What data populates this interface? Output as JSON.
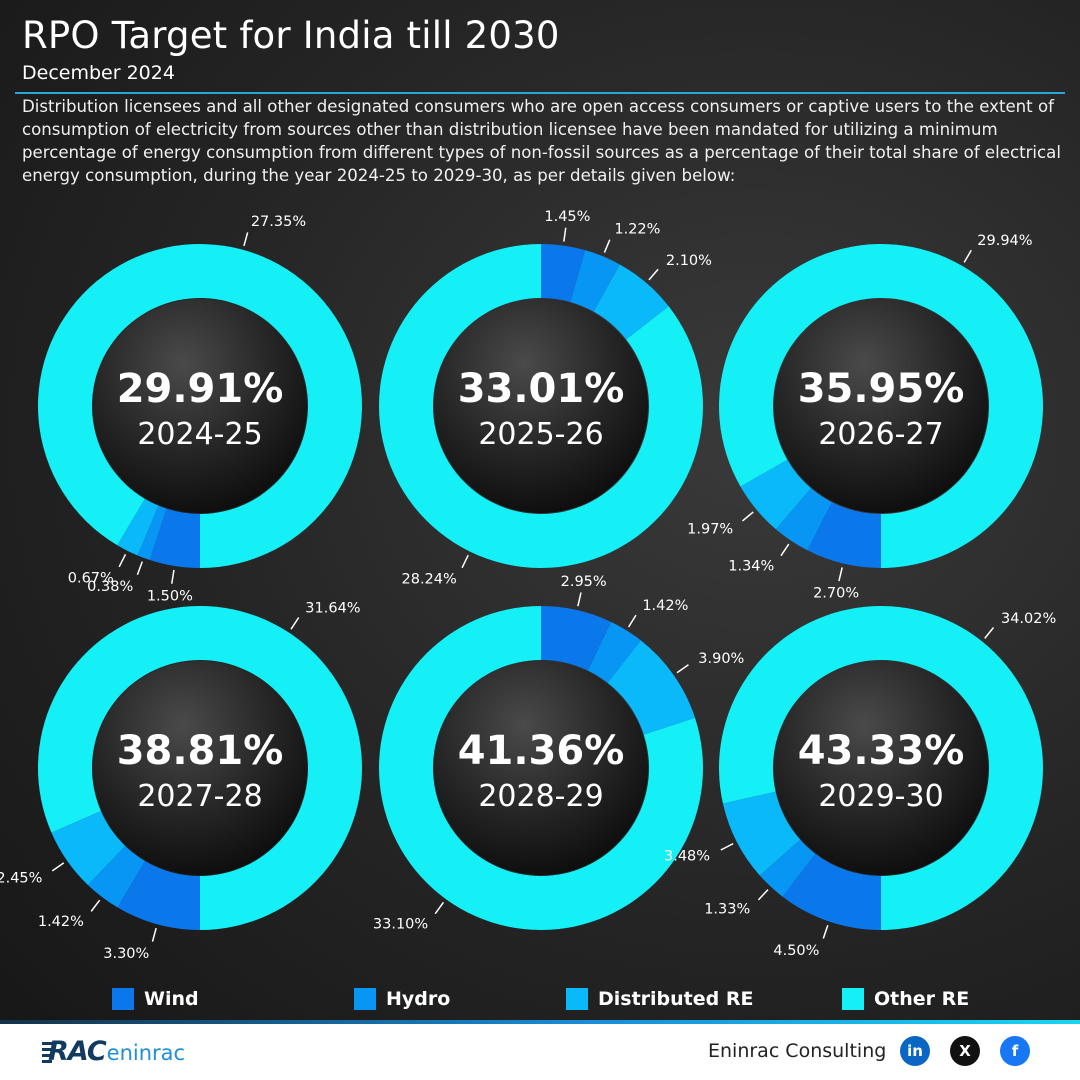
{
  "title": "RPO Target for India till 2030",
  "subtitle": "December 2024",
  "description": "Distribution licensees and all other designated consumers who are open access consumers or captive users to the extent of consumption of electricity from sources other than distribution licensee have been mandated for utilizing a minimum percentage of energy consumption from different types of non-fossil sources as a percentage of their total share of electrical energy consumption, during the year 2024-25 to 2029-30, as per details given below:",
  "colors": {
    "Wind": "#0a78ea",
    "Hydro": "#0896f4",
    "Distributed RE": "#09b9fa",
    "Other RE": "#14f0f6"
  },
  "legend": [
    "Wind",
    "Hydro",
    "Distributed RE",
    "Other RE"
  ],
  "chart_data": [
    {
      "type": "pie",
      "year": "2024-25",
      "total": "29.91%",
      "categories": [
        "Wind",
        "Hydro",
        "Distributed RE",
        "Other RE"
      ],
      "values": [
        1.5,
        0.38,
        0.67,
        27.35
      ],
      "labels": [
        "1.50%",
        "0.38%",
        "0.67%",
        "27.35%"
      ]
    },
    {
      "type": "pie",
      "year": "2025-26",
      "total": "33.01%",
      "categories": [
        "Wind",
        "Hydro",
        "Distributed RE",
        "Other RE"
      ],
      "values": [
        1.45,
        1.22,
        2.1,
        28.24
      ],
      "labels": [
        "1.45%",
        "1.22%",
        "2.10%",
        "28.24%"
      ]
    },
    {
      "type": "pie",
      "year": "2026-27",
      "total": "35.95%",
      "categories": [
        "Wind",
        "Hydro",
        "Distributed RE",
        "Other RE"
      ],
      "values": [
        2.7,
        1.34,
        1.97,
        29.94
      ],
      "labels": [
        "2.70%",
        "1.34%",
        "1.97%",
        "29.94%"
      ]
    },
    {
      "type": "pie",
      "year": "2027-28",
      "total": "38.81%",
      "categories": [
        "Wind",
        "Hydro",
        "Distributed RE",
        "Other RE"
      ],
      "values": [
        3.3,
        1.42,
        2.45,
        31.64
      ],
      "labels": [
        "3.30%",
        "1.42%",
        "2.45%",
        "31.64%"
      ]
    },
    {
      "type": "pie",
      "year": "2028-29",
      "total": "41.36%",
      "categories": [
        "Wind",
        "Hydro",
        "Distributed RE",
        "Other RE"
      ],
      "values": [
        2.95,
        1.42,
        3.9,
        33.1
      ],
      "labels": [
        "2.95%",
        "1.42%",
        "3.90%",
        "33.10%"
      ]
    },
    {
      "type": "pie",
      "year": "2029-30",
      "total": "43.33%",
      "categories": [
        "Wind",
        "Hydro",
        "Distributed RE",
        "Other RE"
      ],
      "values": [
        4.5,
        1.33,
        3.48,
        34.02
      ],
      "labels": [
        "4.50%",
        "1.33%",
        "3.48%",
        "34.02%"
      ]
    }
  ],
  "footer": {
    "logo_rac": "RAC",
    "logo_text": "eninrac",
    "company": "Eninrac Consulting",
    "social": [
      "in",
      "X",
      "f"
    ]
  }
}
